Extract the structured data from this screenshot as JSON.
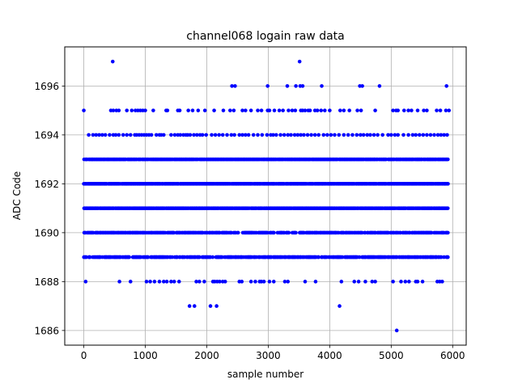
{
  "chart_data": {
    "type": "scatter",
    "title": "channel068 logain raw data",
    "xlabel": "sample number",
    "ylabel": "ADC Code",
    "xlim": [
      -310,
      6220
    ],
    "ylim": [
      1685.4,
      1697.6
    ],
    "xticks": [
      0,
      1000,
      2000,
      3000,
      4000,
      5000,
      6000
    ],
    "yticks": [
      1686,
      1688,
      1690,
      1692,
      1694,
      1696
    ],
    "grid": true,
    "legend": "none",
    "marker_color": "#0000ff",
    "n_samples": 5920,
    "dense_levels": [
      1689,
      1690,
      1691,
      1692,
      1693
    ],
    "sparse_levels": [
      {
        "y": 1686,
        "x": [
          5090
        ]
      },
      {
        "y": 1687,
        "x": [
          1720,
          1800,
          2060,
          2160,
          4160
        ]
      },
      {
        "y": 1688,
        "x": [
          30,
          580,
          760,
          1020,
          1080,
          1150,
          1230,
          1300,
          1350,
          1420,
          1470,
          1550,
          1830,
          1880,
          1960,
          2100,
          2130,
          2170,
          2210,
          2260,
          2300,
          2530,
          2570,
          2720,
          2790,
          2860,
          2890,
          2930,
          3020,
          3090,
          3270,
          3320,
          3600,
          3770,
          4190,
          4400,
          4470,
          4580,
          4690,
          4740,
          5030,
          5160,
          5230,
          5290,
          5400,
          5430,
          5510,
          5750,
          5790,
          5830
        ]
      },
      {
        "y": 1694,
        "x": [
          80,
          150,
          200,
          250,
          300,
          350,
          420,
          480,
          520,
          570,
          640,
          700,
          760,
          830,
          860,
          900,
          940,
          980,
          1020,
          1060,
          1100,
          1180,
          1230,
          1260,
          1300,
          1420,
          1480,
          1530,
          1570,
          1620,
          1660,
          1690,
          1730,
          1790,
          1840,
          1890,
          1930,
          1990,
          2080,
          2140,
          2200,
          2260,
          2330,
          2400,
          2450,
          2530,
          2580,
          2630,
          2680,
          2760,
          2830,
          2900,
          2980,
          3040,
          3080,
          3130,
          3200,
          3260,
          3320,
          3370,
          3430,
          3480,
          3530,
          3580,
          3640,
          3700,
          3760,
          3820,
          3900,
          3960,
          4020,
          4080,
          4150,
          4230,
          4300,
          4370,
          4440,
          4500,
          4550,
          4610,
          4660,
          4720,
          4780,
          4860,
          4950,
          5000,
          5060,
          5110,
          5200,
          5280,
          5350,
          5400,
          5460,
          5520,
          5580,
          5640,
          5700,
          5760,
          5810,
          5860,
          5910
        ]
      },
      {
        "y": 1695,
        "x": [
          0,
          440,
          480,
          530,
          570,
          700,
          780,
          840,
          880,
          920,
          960,
          1000,
          1130,
          1340,
          1360,
          1530,
          1560,
          1700,
          1770,
          1860,
          1970,
          2120,
          2270,
          2380,
          2440,
          2580,
          2630,
          2720,
          2830,
          2890,
          2990,
          3020,
          3100,
          3180,
          3240,
          3330,
          3390,
          3440,
          3530,
          3560,
          3600,
          3650,
          3680,
          3760,
          3800,
          3860,
          3920,
          4000,
          4170,
          4230,
          4320,
          4450,
          4510,
          4740,
          5030,
          5080,
          5110,
          5210,
          5280,
          5330,
          5430,
          5530,
          5580,
          5740,
          5800,
          5890,
          5940
        ]
      },
      {
        "y": 1696,
        "x": [
          2410,
          2460,
          2990,
          3310,
          3450,
          3520,
          3560,
          3870,
          4490,
          4530,
          4810,
          5900
        ]
      },
      {
        "y": 1697,
        "x": [
          470,
          3510
        ]
      }
    ]
  }
}
